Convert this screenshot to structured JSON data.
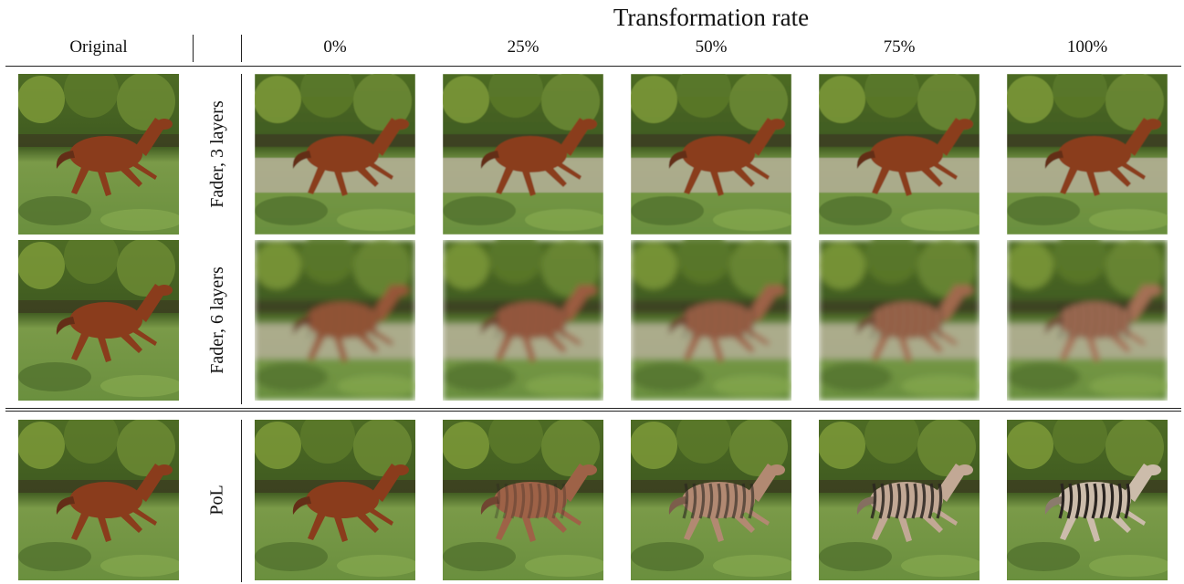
{
  "header": {
    "original_label": "Original",
    "super_title": "Transformation rate",
    "columns": [
      "0%",
      "25%",
      "50%",
      "75%",
      "100%"
    ]
  },
  "rows": [
    {
      "label": "Fader, 3 layers",
      "image_desc": "horse",
      "stripe_levels": [
        0,
        0,
        0,
        0,
        0
      ],
      "blur": 0.6
    },
    {
      "label": "Fader, 6 layers",
      "image_desc": "horse",
      "stripe_levels": [
        0.2,
        0.25,
        0.3,
        0.35,
        0.4
      ],
      "blur": 3.5
    },
    {
      "label": "PoL",
      "image_desc": "horse",
      "stripe_levels": [
        0,
        0.3,
        0.6,
        0.85,
        1.0
      ],
      "blur": 0
    }
  ],
  "colors": {
    "horse": "#8a3c1c",
    "zebra_light": "#d8d2c4",
    "zebra_dark": "#2a2420",
    "grass": "#6a8f3e",
    "trees": "#3f5a20",
    "path": "#b8b09c"
  }
}
